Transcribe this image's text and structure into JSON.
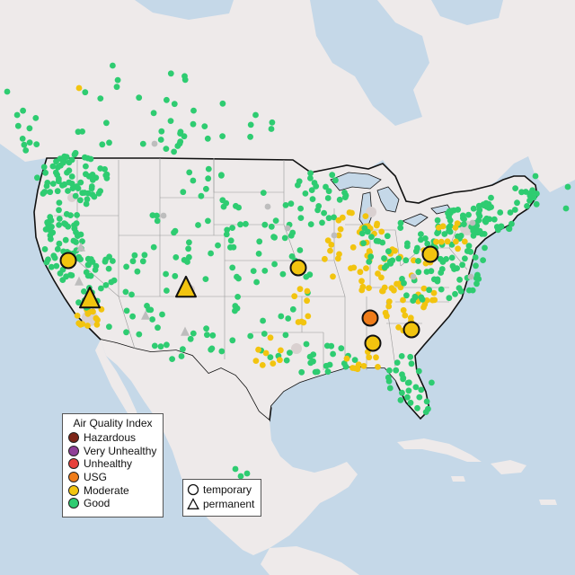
{
  "map": {
    "land_color": "#eeeaea",
    "water_color": "#c5d8e8",
    "urban_color": "#d9d0d0",
    "border_color": "#111111",
    "state_line_color": "#999999",
    "greyed_marker_color": "#bdbdbd"
  },
  "legend": {
    "title": "Air Quality Index",
    "categories": [
      {
        "label": "Hazardous",
        "color": "#7e2518"
      },
      {
        "label": "Very Unhealthy",
        "color": "#8f3f97"
      },
      {
        "label": "Unhealthy",
        "color": "#e8413c"
      },
      {
        "label": "USG",
        "color": "#ef7c1a"
      },
      {
        "label": "Moderate",
        "color": "#f2c40f"
      },
      {
        "label": "Good",
        "color": "#2ecc71"
      }
    ],
    "types": [
      {
        "label": "temporary",
        "shape": "circle"
      },
      {
        "label": "permanent",
        "shape": "triangle"
      }
    ]
  },
  "monitor_summary": {
    "large_temporary_monitors": [
      {
        "category": "Moderate"
      },
      {
        "category": "Moderate"
      },
      {
        "category": "Moderate"
      },
      {
        "category": "USG"
      },
      {
        "category": "Moderate"
      },
      {
        "category": "Moderate"
      }
    ],
    "large_permanent_monitors": [
      {
        "category": "Moderate"
      },
      {
        "category": "Moderate"
      }
    ]
  }
}
